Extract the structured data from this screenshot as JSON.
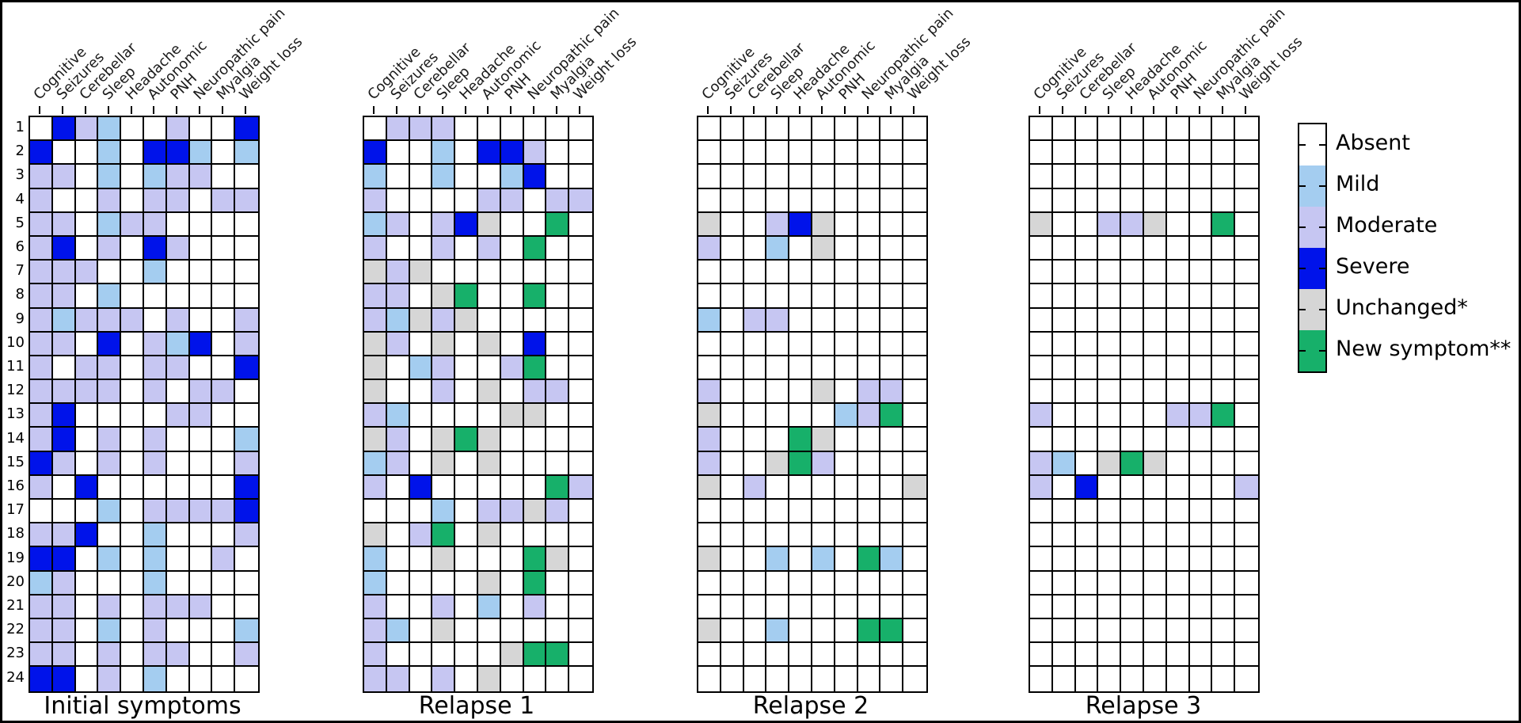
{
  "figure": {
    "description": "Symptom severity heatmaps for 24 patients across four time points",
    "panel_titles": [
      "Initial symptoms",
      "Relapse 1",
      "Relapse 2",
      "Relapse 3"
    ]
  },
  "chart_data": {
    "type": "heatmap",
    "columns": [
      "Cognitive",
      "Seizures",
      "Cerebellar",
      "Sleep",
      "Headache",
      "Autonomic",
      "PNH",
      "Neuropathic pain",
      "Myalgia",
      "Weight loss"
    ],
    "rows": [
      "1",
      "2",
      "3",
      "4",
      "5",
      "6",
      "7",
      "8",
      "9",
      "10",
      "11",
      "12",
      "13",
      "14",
      "15",
      "16",
      "17",
      "18",
      "19",
      "20",
      "21",
      "22",
      "23",
      "24"
    ],
    "legend_position": "right",
    "legend": [
      {
        "label": "Absent",
        "code": "A",
        "color": "#ffffff"
      },
      {
        "label": "Mild",
        "code": "1",
        "color": "#a4cdf0"
      },
      {
        "label": "Moderate",
        "code": "2",
        "color": "#c6c6f2"
      },
      {
        "label": "Severe",
        "code": "3",
        "color": "#0013ea"
      },
      {
        "label": "Unchanged*",
        "code": "U",
        "color": "#d6d6d6"
      },
      {
        "label": "New symptom**",
        "code": "N",
        "color": "#17b06a"
      }
    ],
    "color_map": {
      "A": "#ffffff",
      "1": "#a4cdf0",
      "2": "#c6c6f2",
      "3": "#0013ea",
      "U": "#d6d6d6",
      "N": "#17b06a"
    },
    "panels": [
      {
        "title": "Initial symptoms",
        "cells": [
          "A321AA2AA3",
          "3AA1A331A1",
          "22A1A122AA",
          "2AA2A22A22",
          "22A122AAAA",
          "23A2A32AAA",
          "222AA1AAAA",
          "22A1AAAAAA",
          "21222A2AA2",
          "22A3A213A2",
          "2A22A22AA3",
          "2222A2A22A",
          "23AAAA22AA",
          "23A2A2AAA1",
          "32A2A2AAA2",
          "2A3AAAAAA3",
          "AAA1A22223",
          "223AA1AAA2",
          "33A1A1AA2A",
          "12AAA1AAAA",
          "22A2A222AA",
          "22A1A2AAA1",
          "22A2A22AA2",
          "33A2A1AAAA"
        ]
      },
      {
        "title": "Relapse 1",
        "cells": [
          "A222AAAAAA",
          "3AA1A332AA",
          "1AA1AA13AA",
          "2AAAA22A22",
          "12A23UAANA",
          "2AA2A2ANAA",
          "U2UAAAAAAA",
          "22AUNAANAA",
          "21U2UAAAAA",
          "U2AUAUA3AA",
          "UA12AA2NAA",
          "UAA2AUA22A",
          "21AAAAUUAA",
          "U2AUNUAAAA",
          "12AUAUAAAA",
          "2A3AAAAAN2",
          "AAA1A22U2A",
          "UA2NAUAAAA",
          "1AAUAAANUA",
          "1AAAAUANAA",
          "2AA2A1A2AA",
          "21AUAAAAAA",
          "2AAAAAUNNA",
          "22A2AUAAAA"
        ]
      },
      {
        "title": "Relapse 2",
        "cells": [
          "AAAAAAAAAA",
          "AAAAAAAAAA",
          "AAAAAAAAAA",
          "AAAAAAAAAA",
          "UAA23UAAAA",
          "2AA1AUAAAA",
          "AAAAAAAAAA",
          "AAAAAAAAAA",
          "1A22AAAAAA",
          "AAAAAAAAAA",
          "AAAAAAAAAA",
          "2AAAAUA22A",
          "UAAAAA12NA",
          "2AAANUAAAA",
          "2AAUN2AAAA",
          "UA2AAAAAAU",
          "AAAAAAAAAA",
          "AAAAAAAAAA",
          "UAA1A1AN1A",
          "AAAAAAAAAA",
          "AAAAAAAAAA",
          "UAA1AAANNA",
          "AAAAAAAAAA",
          "AAAAAAAAAA"
        ]
      },
      {
        "title": "Relapse 3",
        "cells": [
          "AAAAAAAAAA",
          "AAAAAAAAAA",
          "AAAAAAAAAA",
          "AAAAAAAAAA",
          "UAA22UAANA",
          "AAAAAAAAAA",
          "AAAAAAAAAA",
          "AAAAAAAAAA",
          "AAAAAAAAAA",
          "AAAAAAAAAA",
          "AAAAAAAAAA",
          "AAAAAAAAAA",
          "2AAAAA22NA",
          "AAAAAAAAAA",
          "21AUNUAAAA",
          "2A3AAAAAA2",
          "AAAAAAAAAA",
          "AAAAAAAAAA",
          "AAAAAAAAAA",
          "AAAAAAAAAA",
          "AAAAAAAAAA",
          "AAAAAAAAAA",
          "AAAAAAAAAA",
          "AAAAAAAAAA"
        ]
      }
    ]
  }
}
